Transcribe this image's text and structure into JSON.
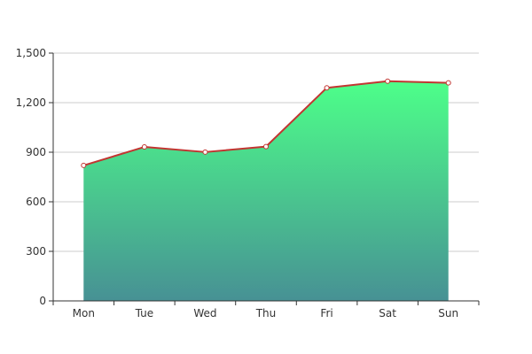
{
  "chart_data": {
    "type": "area",
    "categories": [
      "Mon",
      "Tue",
      "Wed",
      "Thu",
      "Fri",
      "Sat",
      "Sun"
    ],
    "series": [
      {
        "values": [
          820,
          932,
          901,
          934,
          1290,
          1330,
          1320
        ]
      }
    ],
    "ylim": [
      0,
      1500
    ],
    "y_ticks": [
      0,
      300,
      600,
      900,
      1200,
      1500
    ],
    "y_tick_labels": [
      "0",
      "300",
      "600",
      "900",
      "1,200",
      "1,500"
    ],
    "grid": "horizontal",
    "colors": {
      "line": "#c23531",
      "area_top": "#4dff89",
      "area_bottom": "#479194",
      "marker_fill": "#ffffff"
    }
  }
}
